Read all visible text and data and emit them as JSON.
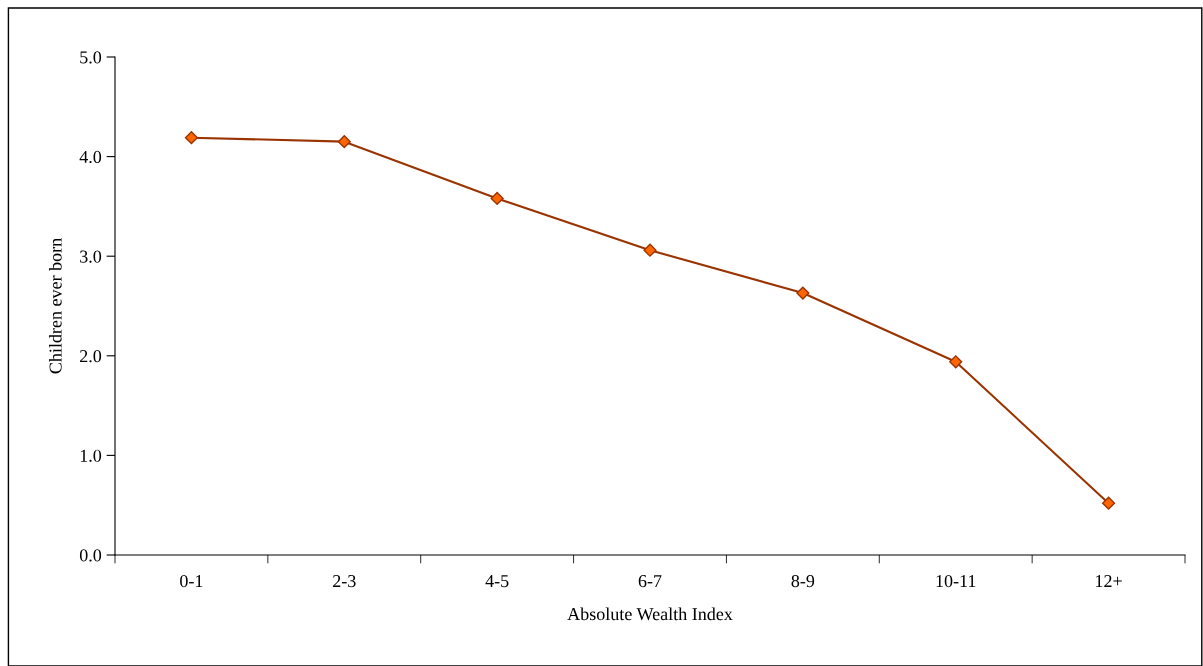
{
  "chart_data": {
    "type": "line",
    "xlabel": "Absolute Wealth Index",
    "ylabel": "Children ever born",
    "categories": [
      "0-1",
      "2-3",
      "4-5",
      "6-7",
      "8-9",
      "10-11",
      "12+"
    ],
    "series": [
      {
        "color": "#993300",
        "values": [
          4.19,
          4.15,
          3.58,
          3.06,
          2.63,
          1.94,
          0.52
        ]
      }
    ],
    "ylim": [
      0,
      5
    ],
    "yticks": [
      {
        "value": 0,
        "label": "0.0"
      },
      {
        "value": 1,
        "label": "1.0"
      },
      {
        "value": 2,
        "label": "2.0"
      },
      {
        "value": 3,
        "label": "3.0"
      },
      {
        "value": 4,
        "label": "4.0"
      },
      {
        "value": 5,
        "label": "5.0"
      }
    ],
    "marker": "diamond",
    "line_style": "solid",
    "grid": false,
    "legend": false
  }
}
